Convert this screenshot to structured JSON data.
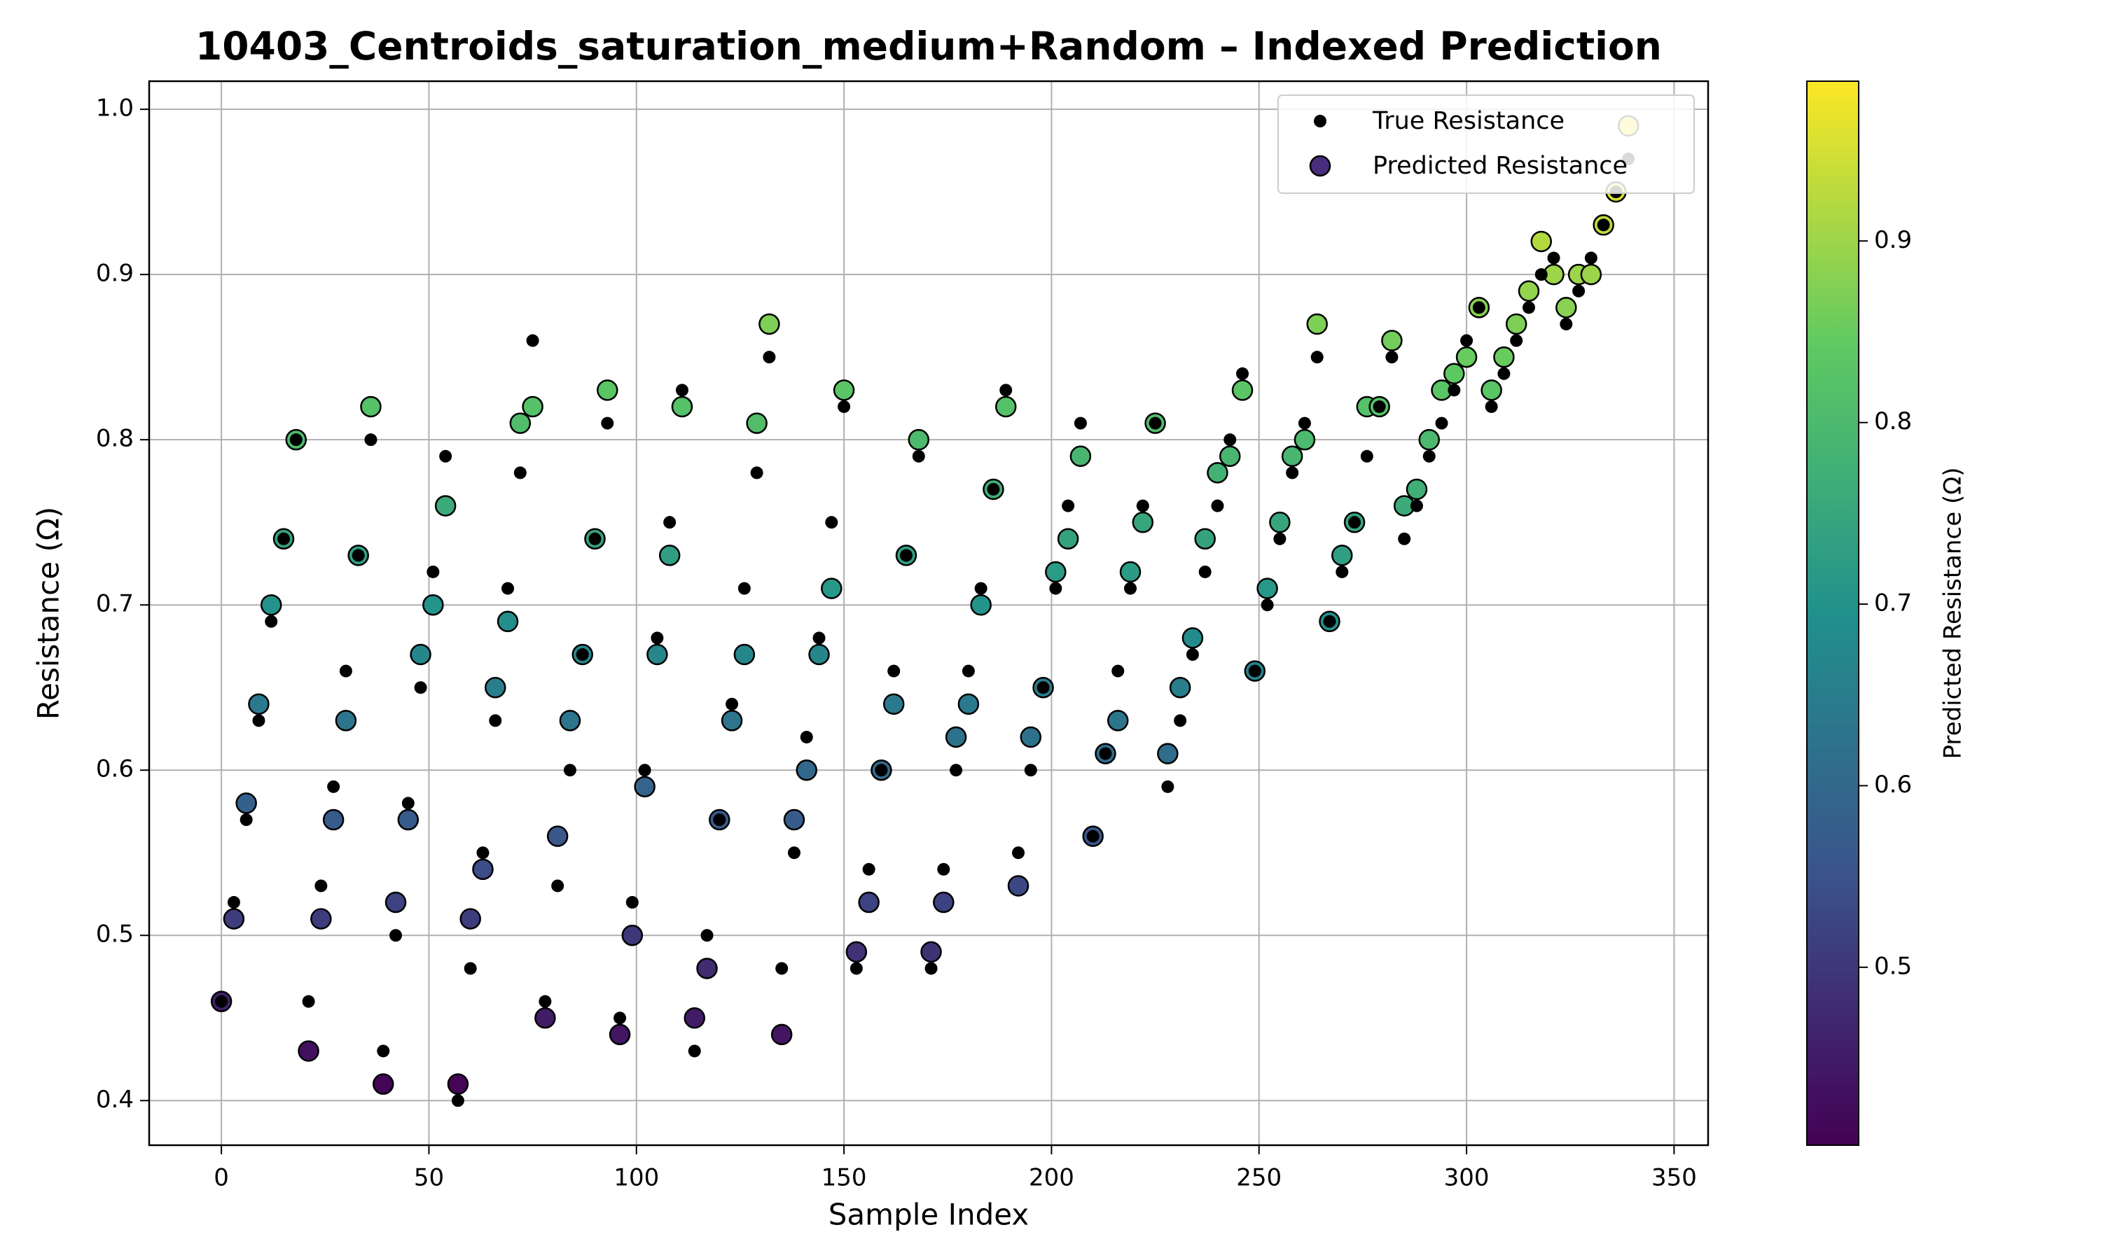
{
  "chart_data": {
    "type": "scatter",
    "title": "10403_Centroids_saturation_medium+Random – Indexed Prediction",
    "x_label": "Sample Index",
    "y_label": "Resistance (Ω)",
    "colorbar_label": "Predicted Resistance (Ω)",
    "x": [
      0,
      3,
      6,
      9,
      12,
      15,
      18,
      21,
      24,
      27,
      30,
      33,
      36,
      39,
      42,
      45,
      48,
      51,
      54,
      57,
      60,
      63,
      66,
      69,
      72,
      75,
      78,
      81,
      84,
      87,
      90,
      93,
      96,
      99,
      102,
      105,
      108,
      111,
      114,
      117,
      120,
      123,
      126,
      129,
      132,
      135,
      138,
      141,
      144,
      147,
      150,
      153,
      156,
      159,
      162,
      165,
      168,
      171,
      174,
      177,
      180,
      183,
      186,
      189,
      192,
      195,
      198,
      201,
      204,
      207,
      210,
      213,
      216,
      219,
      222,
      225,
      228,
      231,
      234,
      237,
      240,
      243,
      246,
      249,
      252,
      255,
      258,
      261,
      264,
      267,
      270,
      273,
      276,
      279,
      282,
      285,
      288,
      291,
      294,
      297,
      300,
      303,
      306,
      309,
      312,
      315,
      318,
      321,
      324,
      327,
      330,
      333,
      336,
      339
    ],
    "series": [
      {
        "name": "True Resistance",
        "color": "#000000",
        "values": [
          0.46,
          0.52,
          0.57,
          0.63,
          0.69,
          0.74,
          0.8,
          0.46,
          0.53,
          0.59,
          0.66,
          0.73,
          0.8,
          0.43,
          0.5,
          0.58,
          0.65,
          0.72,
          0.79,
          0.4,
          0.48,
          0.55,
          0.63,
          0.71,
          0.78,
          0.86,
          0.46,
          0.53,
          0.6,
          0.67,
          0.74,
          0.81,
          0.45,
          0.52,
          0.6,
          0.68,
          0.75,
          0.83,
          0.43,
          0.5,
          0.57,
          0.64,
          0.71,
          0.78,
          0.85,
          0.48,
          0.55,
          0.62,
          0.68,
          0.75,
          0.82,
          0.48,
          0.54,
          0.6,
          0.66,
          0.73,
          0.79,
          0.48,
          0.54,
          0.6,
          0.66,
          0.71,
          0.77,
          0.83,
          0.55,
          0.6,
          0.65,
          0.71,
          0.76,
          0.81,
          0.56,
          0.61,
          0.66,
          0.71,
          0.76,
          0.81,
          0.59,
          0.63,
          0.67,
          0.72,
          0.76,
          0.8,
          0.84,
          0.66,
          0.7,
          0.74,
          0.78,
          0.81,
          0.85,
          0.69,
          0.72,
          0.75,
          0.79,
          0.82,
          0.85,
          0.74,
          0.76,
          0.79,
          0.81,
          0.83,
          0.86,
          0.88,
          0.82,
          0.84,
          0.86,
          0.88,
          0.9,
          0.91,
          0.87,
          0.89,
          0.91,
          0.93,
          0.95,
          0.97
        ]
      },
      {
        "name": "Predicted Resistance",
        "colormap": "viridis",
        "values": [
          0.46,
          0.51,
          0.58,
          0.64,
          0.7,
          0.74,
          0.8,
          0.43,
          0.51,
          0.57,
          0.63,
          0.73,
          0.82,
          0.41,
          0.52,
          0.57,
          0.67,
          0.7,
          0.76,
          0.41,
          0.51,
          0.54,
          0.65,
          0.69,
          0.81,
          0.82,
          0.45,
          0.56,
          0.63,
          0.67,
          0.74,
          0.83,
          0.44,
          0.5,
          0.59,
          0.67,
          0.73,
          0.82,
          0.45,
          0.48,
          0.57,
          0.63,
          0.67,
          0.81,
          0.87,
          0.44,
          0.57,
          0.6,
          0.67,
          0.71,
          0.83,
          0.49,
          0.52,
          0.6,
          0.64,
          0.73,
          0.8,
          0.49,
          0.52,
          0.62,
          0.64,
          0.7,
          0.77,
          0.82,
          0.53,
          0.62,
          0.65,
          0.72,
          0.74,
          0.79,
          0.56,
          0.61,
          0.63,
          0.72,
          0.75,
          0.81,
          0.61,
          0.65,
          0.68,
          0.74,
          0.78,
          0.79,
          0.83,
          0.66,
          0.71,
          0.75,
          0.79,
          0.8,
          0.87,
          0.69,
          0.73,
          0.75,
          0.82,
          0.82,
          0.86,
          0.76,
          0.77,
          0.8,
          0.83,
          0.84,
          0.85,
          0.88,
          0.83,
          0.85,
          0.87,
          0.89,
          0.92,
          0.9,
          0.88,
          0.9,
          0.9,
          0.93,
          0.95,
          0.99
        ]
      }
    ],
    "xlim": [
      -17.4,
      358.2
    ],
    "ylim": [
      0.373,
      1.017
    ],
    "xticks": [
      0,
      50,
      100,
      150,
      200,
      250,
      300,
      350
    ],
    "yticks": [
      0.4,
      0.5,
      0.6,
      0.7,
      0.8,
      0.9,
      {
        "value": 1,
        "label": "1.0"
      }
    ],
    "clim": [
      0.402,
      0.988
    ],
    "cticks": [
      0.5,
      0.6,
      0.7,
      0.8,
      0.9
    ],
    "grid": true,
    "legend": "upper right"
  }
}
